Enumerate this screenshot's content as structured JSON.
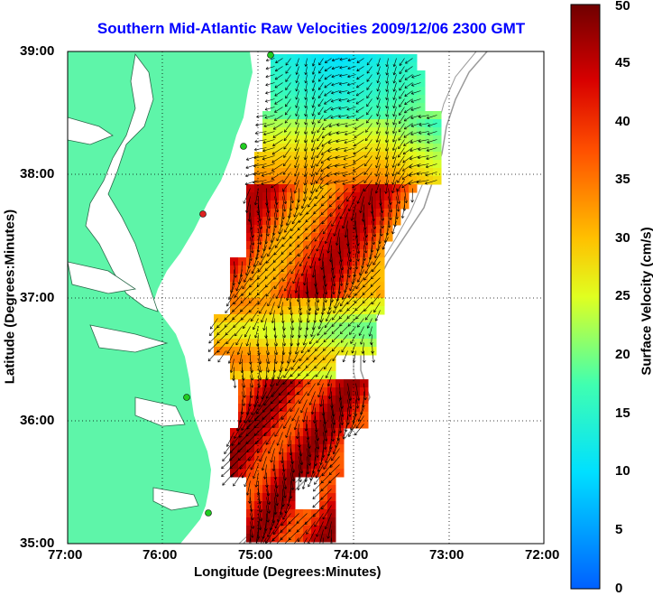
{
  "title": "Southern Mid-Atlantic Raw Velocities 2009/12/06 2300 GMT",
  "x_axis": {
    "label": "Longitude (Degrees:Minutes)",
    "ticks": [
      "77:00",
      "76:00",
      "75:00",
      "74:00",
      "73:00",
      "72:00"
    ]
  },
  "y_axis": {
    "label": "Latitude (Degrees:Minutes)",
    "ticks": [
      "39:00",
      "38:00",
      "37:00",
      "36:00",
      "35:00"
    ]
  },
  "colorbar": {
    "label": "Surface Velocity (cm/s)",
    "ticks": [
      "50",
      "45",
      "40",
      "35",
      "30",
      "25",
      "20",
      "15",
      "10",
      "5",
      "0"
    ]
  },
  "colors": {
    "land": "#5ef5a9",
    "title": "#0000ff",
    "grid": "#000000",
    "station_marker": "#22cc22",
    "station_marker_highlight": "#dd2222",
    "bathymetry_contour": "#9a9a9a"
  },
  "map": {
    "lon_range": [
      "77:00",
      "72:00"
    ],
    "lat_range": [
      "35:00",
      "39:00"
    ],
    "grid": true,
    "vector_field": "surface current velocity arrows over colored speed field"
  }
}
